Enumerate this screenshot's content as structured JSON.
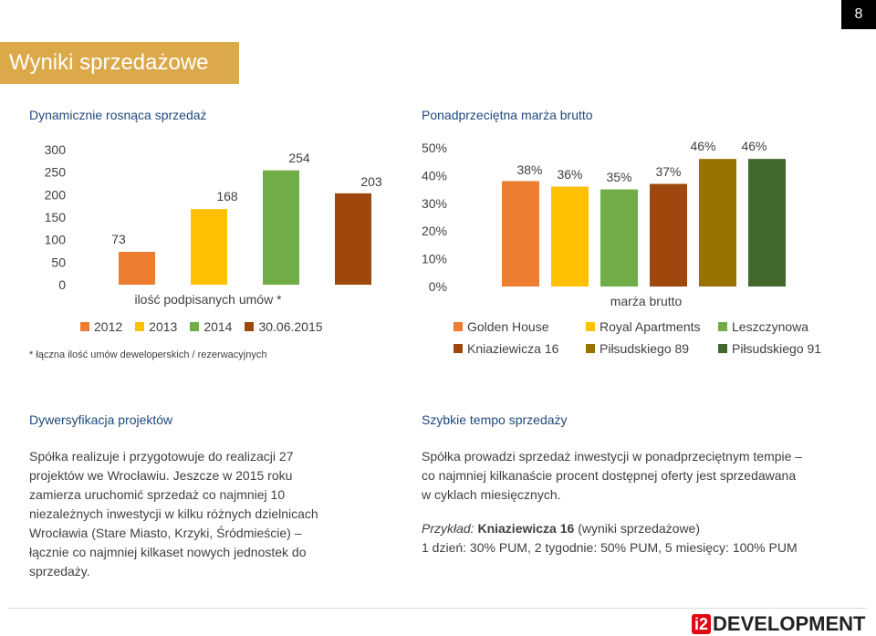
{
  "page_number": "8",
  "title": "Wyniki sprzedażowe",
  "left_chart_heading": "Dynamicznie rosnąca sprzedaż",
  "right_chart_heading": "Ponadprzeciętna marża brutto",
  "colors": {
    "title_bg": "#dba94a",
    "heading": "#1f497d",
    "orange": "#ed7d31",
    "yellow": "#ffc000",
    "green": "#70ad47",
    "brown": "#9e480e",
    "olive": "#997300",
    "darkgreen": "#43682b",
    "logo_red": "#e30613"
  },
  "chart_data": [
    {
      "type": "bar",
      "xlabel": "ilość podpisanych umów *",
      "ylim": [
        0,
        300
      ],
      "yticks": [
        "300",
        "250",
        "200",
        "150",
        "100",
        "50",
        "0"
      ],
      "series": [
        {
          "name": "2012",
          "values": [
            73
          ],
          "label": "73",
          "color": "#ed7d31"
        },
        {
          "name": "2013",
          "values": [
            168
          ],
          "label": "168",
          "color": "#ffc000"
        },
        {
          "name": "2014",
          "values": [
            254
          ],
          "label": "254",
          "color": "#70ad47"
        },
        {
          "name": "30.06.2015",
          "values": [
            203
          ],
          "label": "203",
          "color": "#9e480e"
        }
      ],
      "legend": "bottom",
      "footnote": "* łączna ilość umów deweloperskich / rezerwacyjnych"
    },
    {
      "type": "bar",
      "xlabel": "marża brutto",
      "ylim": [
        0,
        50
      ],
      "yticks": [
        "50%",
        "40%",
        "30%",
        "20%",
        "10%",
        "0%"
      ],
      "series": [
        {
          "name": "Golden House",
          "values": [
            38
          ],
          "label": "38%",
          "color": "#ed7d31"
        },
        {
          "name": "Royal Apartments",
          "values": [
            36
          ],
          "label": "36%",
          "color": "#ffc000"
        },
        {
          "name": "Leszczynowa",
          "values": [
            35
          ],
          "label": "35%",
          "color": "#70ad47"
        },
        {
          "name": "Kniaziewicza 16",
          "values": [
            37
          ],
          "label": "37%",
          "color": "#9e480e"
        },
        {
          "name": "Piłsudskiego 89",
          "values": [
            46
          ],
          "label": "46%",
          "color": "#997300"
        },
        {
          "name": "Piłsudskiego 91",
          "values": [
            46
          ],
          "label": "46%",
          "color": "#43682b"
        }
      ],
      "legend": "bottom"
    }
  ],
  "diversification": {
    "heading": "Dywersyfikacja projektów",
    "lines": [
      "Spółka realizuje i przygotowuje do realizacji 27",
      "projektów we Wrocławiu. Jeszcze w 2015 roku",
      "zamierza uruchomić sprzedaż co najmniej 10",
      "niezależnych inwestycji w kilku różnych dzielnicach",
      "Wrocławia (Stare Miasto, Krzyki, Śródmieście) –",
      "łącznie co najmniej kilkaset nowych jednostek do",
      "sprzedaży."
    ]
  },
  "speed": {
    "heading": "Szybkie tempo sprzedaży",
    "lines": [
      "Spółka prowadzi sprzedaż inwestycji w ponadprzeciętnym tempie –",
      "co najmniej kilkanaście procent dostępnej oferty jest sprzedawana",
      "w cyklach miesięcznych."
    ],
    "example_label": "Przykład:",
    "example_project": "Kniaziewicza 16",
    "example_suffix": "(wyniki sprzedażowe)",
    "example_results": "1 dzień: 30% PUM, 2 tygodnie: 50% PUM, 5 miesięcy: 100% PUM"
  },
  "logo": {
    "mark": "i2",
    "word": "DEVELOPMENT"
  }
}
